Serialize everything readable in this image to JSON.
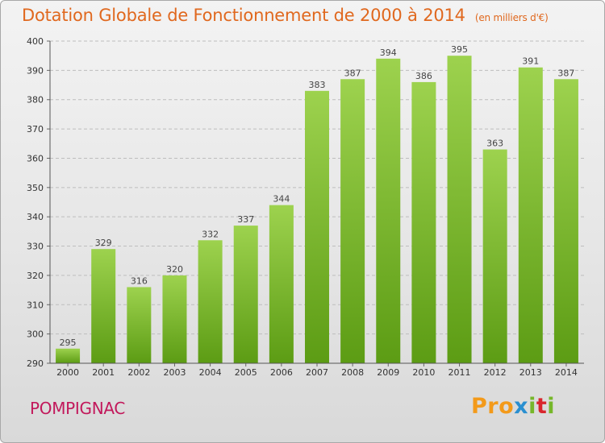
{
  "title": "Dotation Globale de Fonctionnement de 2000 à 2014",
  "unit": "(en milliers d'€)",
  "commune": "POMPIGNAC",
  "logo": "Proxiti",
  "colors": {
    "title": "#e0681e",
    "commune": "#c2185b",
    "bar_top": "#9dd24e",
    "bar_bottom": "#5c9c14"
  },
  "chart_data": {
    "type": "bar",
    "title": "Dotation Globale de Fonctionnement de 2000 à 2014",
    "subtitle": "(en milliers d'€)",
    "categories": [
      "2000",
      "2001",
      "2002",
      "2003",
      "2004",
      "2005",
      "2006",
      "2007",
      "2008",
      "2009",
      "2010",
      "2011",
      "2012",
      "2013",
      "2014"
    ],
    "values": [
      295,
      329,
      316,
      320,
      332,
      337,
      344,
      383,
      387,
      394,
      386,
      395,
      363,
      391,
      387
    ],
    "ylim": [
      290,
      400
    ],
    "yticks": [
      290,
      300,
      310,
      320,
      330,
      340,
      350,
      360,
      370,
      380,
      390,
      400
    ],
    "grid": true,
    "xlabel": "",
    "ylabel": ""
  }
}
